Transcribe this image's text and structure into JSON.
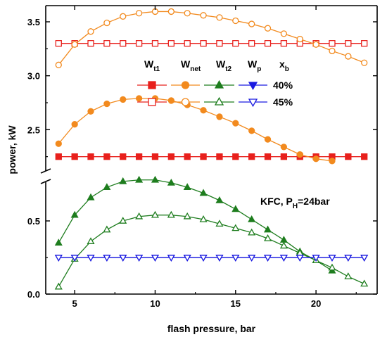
{
  "chart_data": {
    "type": "line",
    "xlabel": "flash pressure, bar",
    "ylabel": "power, kW",
    "xlim": [
      3.2,
      23.8
    ],
    "x_ticks": [
      5,
      10,
      15,
      20
    ],
    "x_tick_labels": [
      "5",
      "10",
      "15",
      "20"
    ],
    "y_axis_break": true,
    "upper_panel": {
      "ylim": [
        2.15,
        3.65
      ],
      "y_ticks": [
        2.5,
        3.0,
        3.5
      ],
      "y_tick_labels": [
        "2.5",
        "3.0",
        "3.5"
      ]
    },
    "lower_panel": {
      "ylim": [
        0.0,
        0.75
      ],
      "y_ticks": [
        0.0,
        0.5
      ],
      "y_tick_labels": [
        "0.0",
        "0.5"
      ]
    },
    "x": [
      4,
      5,
      6,
      7,
      8,
      9,
      10,
      11,
      12,
      13,
      14,
      15,
      16,
      17,
      18,
      19,
      20,
      21,
      22,
      23
    ],
    "series": [
      {
        "key": "wt1_40",
        "panel": "upper",
        "color": "#e8201c",
        "marker": "square",
        "filled": true,
        "values": [
          2.25,
          2.25,
          2.25,
          2.25,
          2.25,
          2.25,
          2.25,
          2.25,
          2.25,
          2.25,
          2.25,
          2.25,
          2.25,
          2.25,
          2.25,
          2.25,
          2.25,
          2.25,
          2.25,
          2.25
        ]
      },
      {
        "key": "wt1_45",
        "panel": "upper",
        "color": "#e8201c",
        "marker": "square",
        "filled": false,
        "values": [
          3.3,
          3.3,
          3.3,
          3.3,
          3.3,
          3.3,
          3.3,
          3.3,
          3.3,
          3.3,
          3.3,
          3.3,
          3.3,
          3.3,
          3.3,
          3.3,
          3.3,
          3.3,
          3.3,
          3.3
        ]
      },
      {
        "key": "wnet_40",
        "panel": "upper",
        "color": "#f28a1e",
        "marker": "circle",
        "filled": true,
        "values": [
          2.37,
          2.55,
          2.67,
          2.74,
          2.78,
          2.79,
          2.79,
          2.77,
          2.73,
          2.68,
          2.62,
          2.56,
          2.49,
          2.41,
          2.34,
          2.27,
          2.23,
          2.21,
          null,
          null
        ]
      },
      {
        "key": "wnet_45",
        "panel": "upper",
        "color": "#f28a1e",
        "marker": "circle",
        "filled": false,
        "values": [
          3.1,
          3.29,
          3.41,
          3.49,
          3.55,
          3.58,
          3.595,
          3.595,
          3.58,
          3.56,
          3.54,
          3.51,
          3.48,
          3.44,
          3.39,
          3.34,
          3.29,
          3.23,
          3.18,
          3.12
        ]
      },
      {
        "key": "wt2_40",
        "panel": "lower",
        "color": "#1e7d1e",
        "marker": "triangle-up",
        "filled": true,
        "values": [
          0.35,
          0.54,
          0.66,
          0.73,
          0.77,
          0.78,
          0.78,
          0.76,
          0.73,
          0.69,
          0.64,
          0.58,
          0.51,
          0.44,
          0.37,
          0.29,
          0.23,
          0.16,
          null,
          null
        ]
      },
      {
        "key": "wt2_45",
        "panel": "lower",
        "color": "#1e7d1e",
        "marker": "triangle-up",
        "filled": false,
        "values": [
          0.05,
          0.24,
          0.36,
          0.44,
          0.5,
          0.53,
          0.54,
          0.54,
          0.53,
          0.51,
          0.48,
          0.45,
          0.42,
          0.38,
          0.33,
          0.28,
          0.23,
          0.18,
          0.12,
          0.07
        ]
      },
      {
        "key": "wp_40",
        "panel": "lower",
        "color": "#1a1ae0",
        "marker": "triangle-down",
        "filled": true,
        "values": [
          0.25,
          0.25,
          0.25,
          0.25,
          0.25,
          0.25,
          0.25,
          0.25,
          0.25,
          0.25,
          0.25,
          0.25,
          0.25,
          0.25,
          0.25,
          0.25,
          0.25,
          0.25,
          0.25,
          0.25
        ]
      },
      {
        "key": "wp_45",
        "panel": "lower",
        "color": "#1a1ae0",
        "marker": "triangle-down",
        "filled": false,
        "values": [
          0.25,
          0.25,
          0.25,
          0.25,
          0.25,
          0.25,
          0.25,
          0.25,
          0.25,
          0.25,
          0.25,
          0.25,
          0.25,
          0.25,
          0.25,
          0.25,
          0.25,
          0.25,
          0.25,
          0.25
        ]
      }
    ],
    "legend": {
      "headers": [
        {
          "main": "W",
          "sub": "t1"
        },
        {
          "main": "W",
          "sub": "net"
        },
        {
          "main": "W",
          "sub": "t2"
        },
        {
          "main": "W",
          "sub": "p"
        },
        {
          "main": "x",
          "sub": "b"
        }
      ],
      "rows": [
        {
          "label": "40%",
          "filled": true
        },
        {
          "label": "45%",
          "filled": false
        }
      ],
      "columns": [
        {
          "color": "#e8201c",
          "marker": "square"
        },
        {
          "color": "#f28a1e",
          "marker": "circle"
        },
        {
          "color": "#1e7d1e",
          "marker": "triangle-up"
        },
        {
          "color": "#1a1ae0",
          "marker": "triangle-down"
        }
      ]
    },
    "annotation": {
      "main": "KFC, P",
      "sub": "H",
      "tail": "=24bar"
    }
  }
}
